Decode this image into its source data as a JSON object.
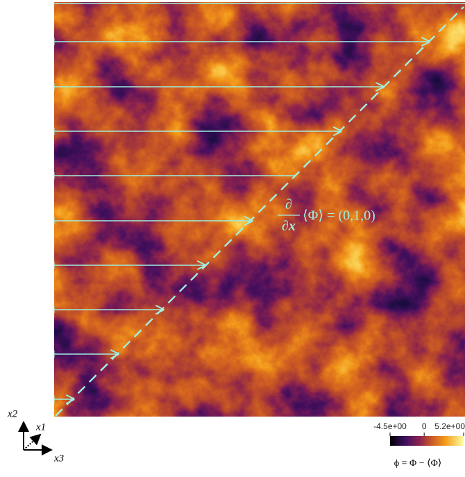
{
  "annotation": {
    "numerator": "∂",
    "denominator": "∂x",
    "rhs": "⟨Φ⟩ = (0,1,0)"
  },
  "axes": {
    "x1": "x1",
    "x2": "x2",
    "x3": "x3"
  },
  "colorbar": {
    "title": "ϕ = Φ − ⟨Φ⟩",
    "range": [
      -4.5,
      5.2
    ],
    "ticks": [
      {
        "value": -4.5,
        "label": "-4.5e+00"
      },
      {
        "value": 0,
        "label": "0"
      },
      {
        "value": 5.2,
        "label": "5.2e+00"
      }
    ]
  }
}
